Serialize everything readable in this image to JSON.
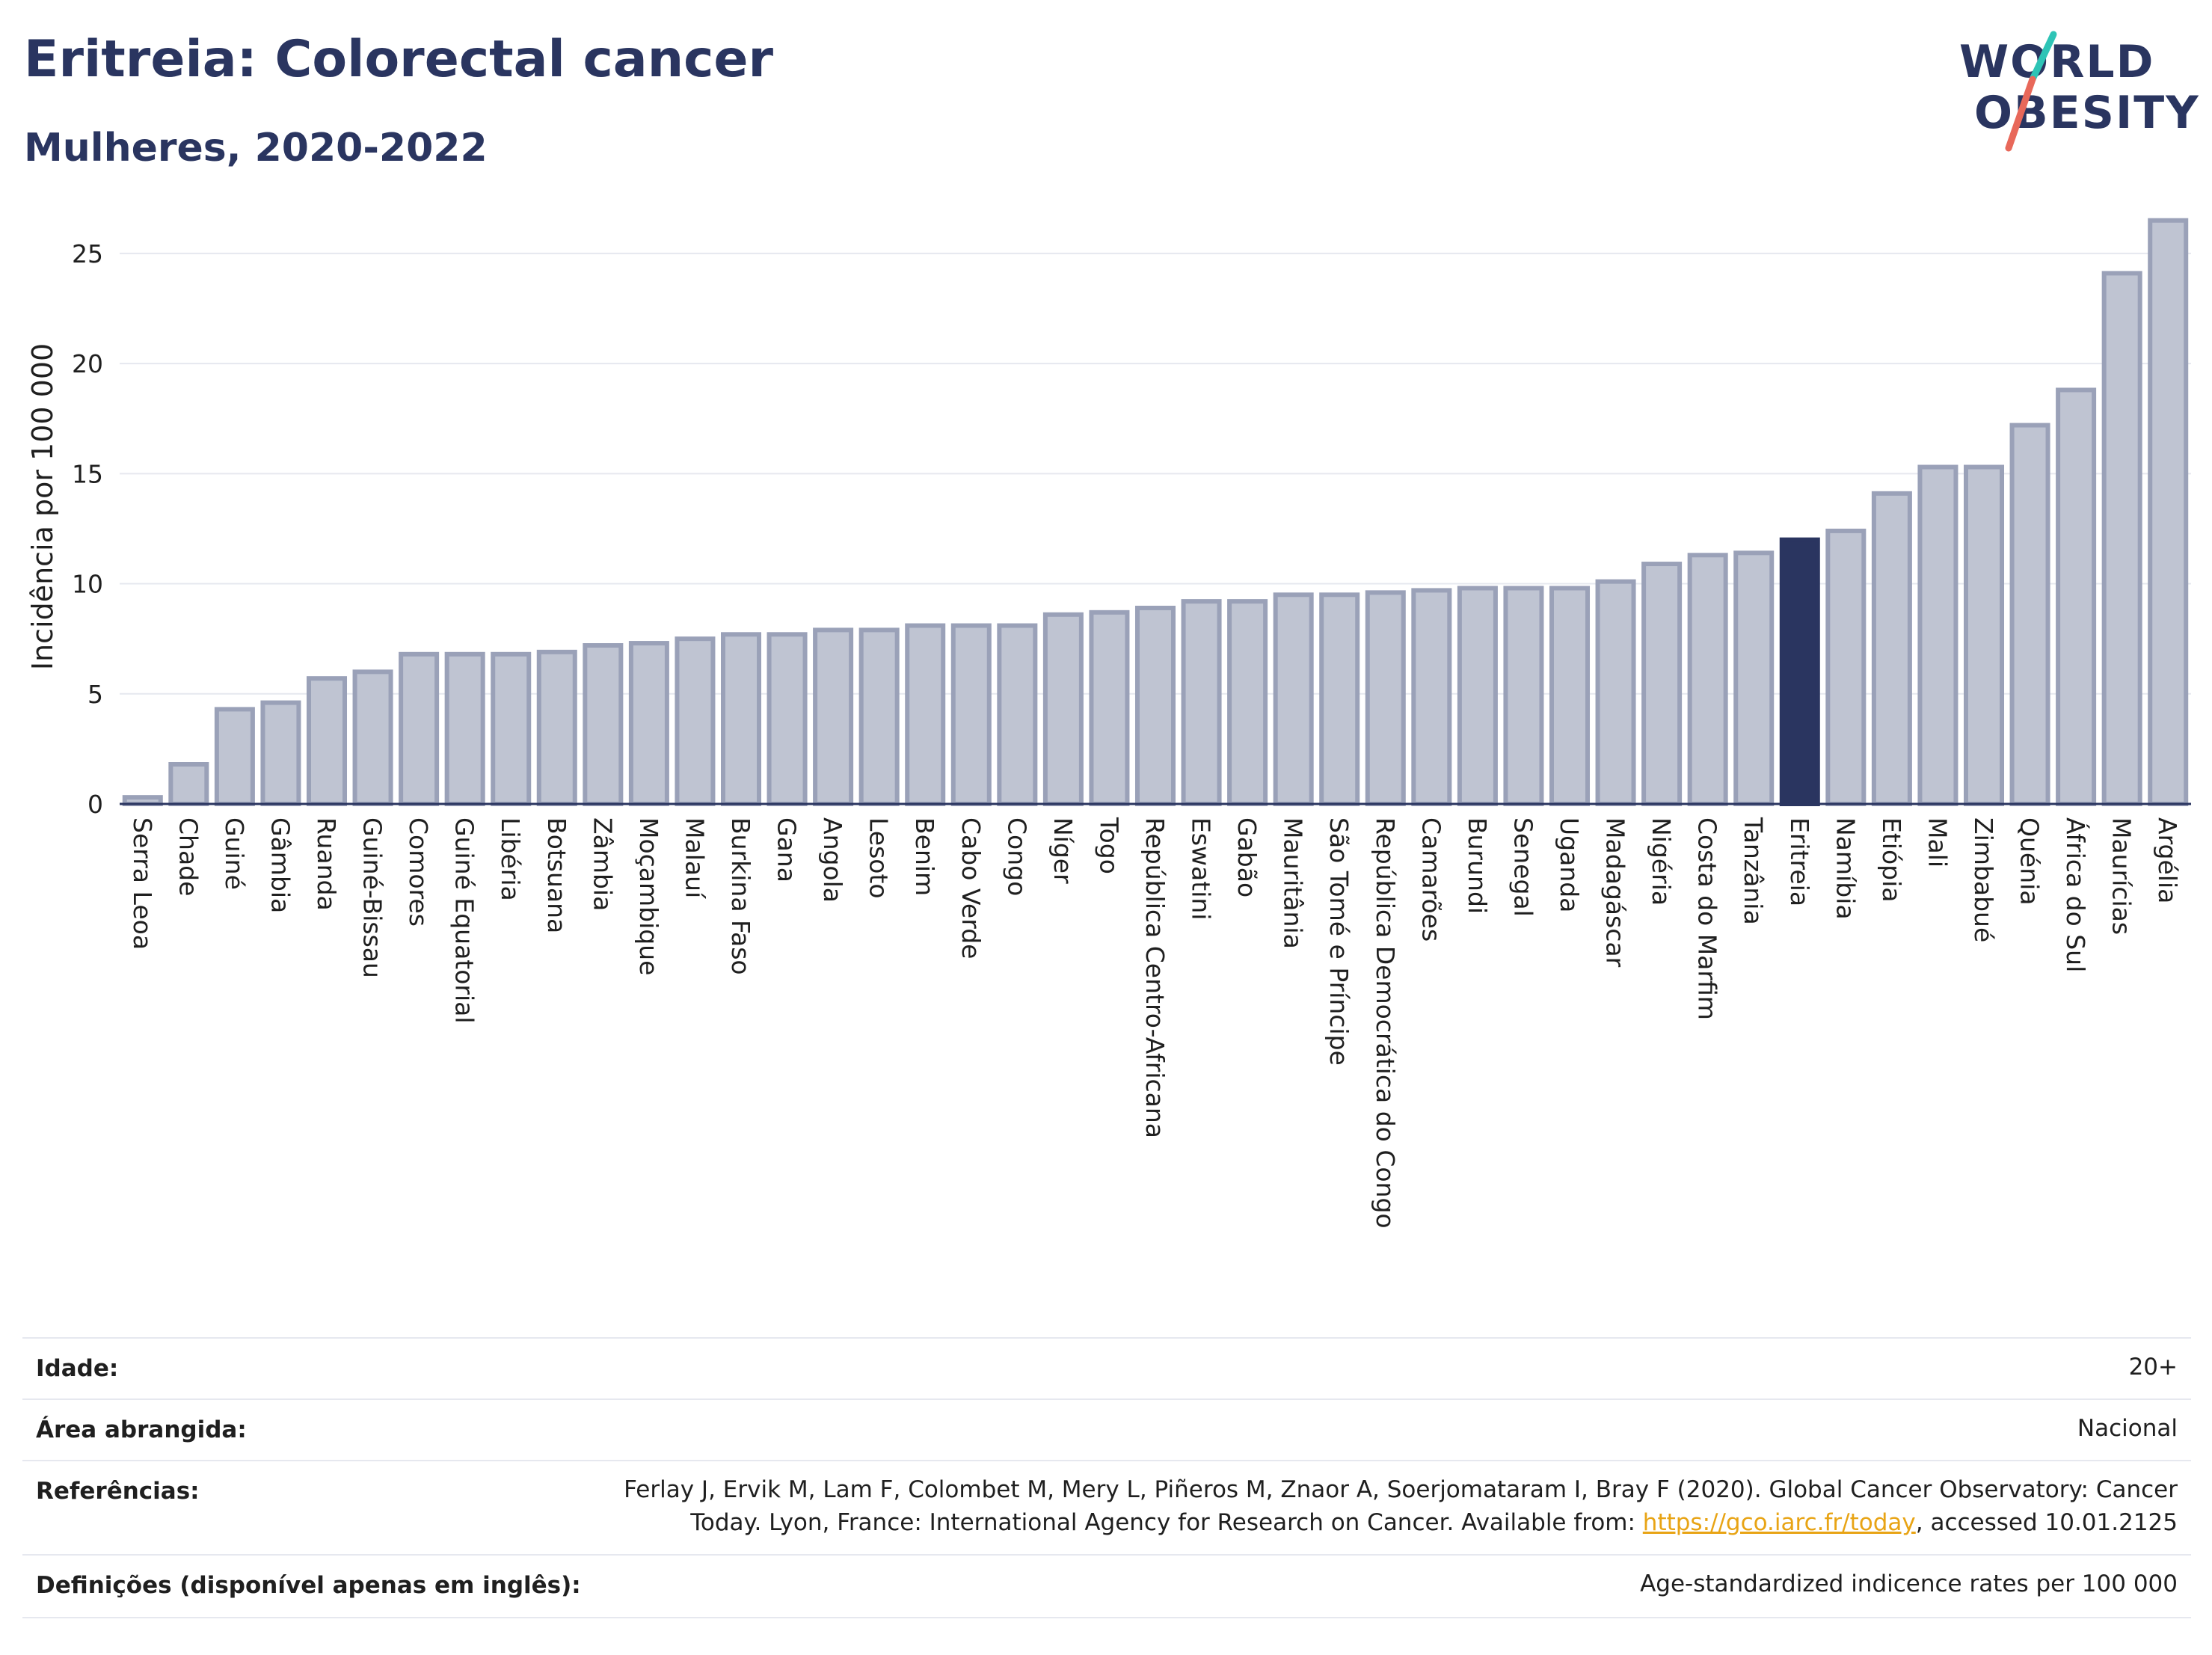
{
  "header": {
    "title": "Eritreia: Colorectal cancer",
    "subtitle": "Mulheres, 2020-2022",
    "logo_line1": "WORLD",
    "logo_line2": "OBESITY"
  },
  "colors": {
    "bar": "#bfc4d2",
    "bar_border": "#9aa1b8",
    "highlight": "#2a3560",
    "grid": "#e6e8ef",
    "logo_slash_top": "#2ec4b6",
    "logo_slash_bottom": "#e8685a"
  },
  "chart_data": {
    "type": "bar",
    "ylabel": "Incidência por 100 000",
    "ylim": [
      0,
      27
    ],
    "yticks": [
      0,
      5,
      10,
      15,
      20,
      25
    ],
    "grid": true,
    "highlight": "Eritreia",
    "categories": [
      "Serra Leoa",
      "Chade",
      "Guiné",
      "Gâmbia",
      "Ruanda",
      "Guiné-Bissau",
      "Comores",
      "Guiné Equatorial",
      "Libéria",
      "Botsuana",
      "Zâmbia",
      "Moçambique",
      "Malauí",
      "Burkina Faso",
      "Gana",
      "Angola",
      "Lesoto",
      "Benim",
      "Cabo Verde",
      "Congo",
      "Níger",
      "Togo",
      "República Centro-Africana",
      "Eswatini",
      "Gabão",
      "Mauritânia",
      "São Tomé e Príncipe",
      "República Democrática do Congo",
      "Camarões",
      "Burundi",
      "Senegal",
      "Uganda",
      "Madagáscar",
      "Nigéria",
      "Costa do Marfim",
      "Tanzânia",
      "Eritreia",
      "Namíbia",
      "Etiópia",
      "Mali",
      "Zimbabué",
      "Quénia",
      "África do Sul",
      "Maurícias",
      "Argélia"
    ],
    "values": [
      0.3,
      1.8,
      4.3,
      4.6,
      5.7,
      6.0,
      6.8,
      6.8,
      6.8,
      6.9,
      7.2,
      7.3,
      7.5,
      7.7,
      7.7,
      7.9,
      7.9,
      8.1,
      8.1,
      8.1,
      8.6,
      8.7,
      8.9,
      9.2,
      9.2,
      9.5,
      9.5,
      9.6,
      9.7,
      9.8,
      9.8,
      9.8,
      10.1,
      10.9,
      11.3,
      11.4,
      12.0,
      12.4,
      14.1,
      15.3,
      15.3,
      17.2,
      18.8,
      24.1,
      26.5
    ]
  },
  "meta": {
    "age_label": "Idade:",
    "age_value": "20+",
    "area_label": "Área abrangida:",
    "area_value": "Nacional",
    "ref_label": "Referências:",
    "ref_line1": "Ferlay J, Ervik M, Lam F, Colombet M, Mery L, Piñeros M, Znaor A, Soerjomataram I, Bray F (2020). Global Cancer Observatory: Cancer",
    "ref_line2_pre": "Today. Lyon, France: International Agency for Research on Cancer. Available from: ",
    "ref_link": "https://gco.iarc.fr/today",
    "ref_line2_post": ", accessed 10.01.2125",
    "def_label": "Definições (disponível apenas em inglês):",
    "def_value": "Age-standardized indicence rates per 100 000"
  }
}
